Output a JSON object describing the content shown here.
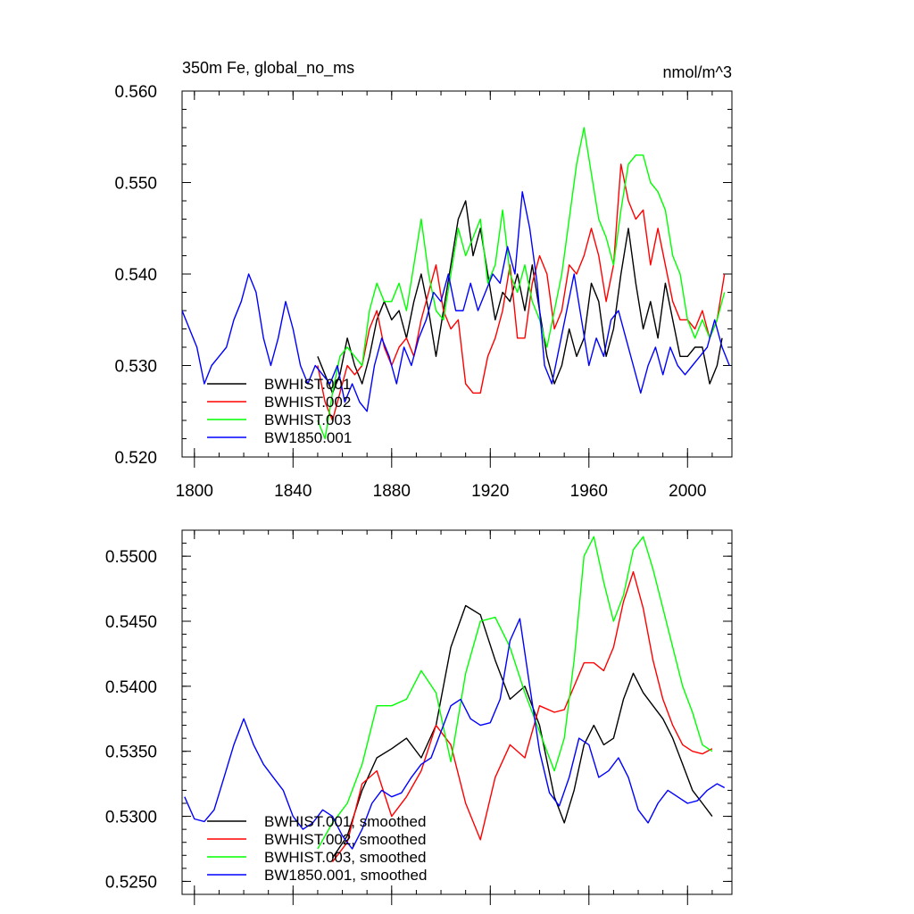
{
  "chart_data": [
    {
      "type": "line",
      "title": "350m Fe, global_no_ms",
      "units": "nmol/m^3",
      "xlabel": "",
      "ylabel": "",
      "xlim": [
        1795,
        2018
      ],
      "ylim": [
        0.52,
        0.56
      ],
      "x_ticks": [
        1800,
        1840,
        1880,
        1920,
        1960,
        2000
      ],
      "x_tick_labels": [
        "1800",
        "1840",
        "1880",
        "1920",
        "1960",
        "2000"
      ],
      "y_ticks": [
        0.52,
        0.53,
        0.54,
        0.55,
        0.56
      ],
      "y_tick_labels": [
        "0.520",
        "0.530",
        "0.540",
        "0.550",
        "0.560"
      ],
      "legend_position": "bottom-left",
      "grid": false,
      "series": [
        {
          "name": "BWHIST.001",
          "color": "#000000",
          "x": [
            1850,
            1853,
            1856,
            1859,
            1862,
            1865,
            1868,
            1871,
            1874,
            1877,
            1880,
            1883,
            1886,
            1889,
            1892,
            1895,
            1898,
            1901,
            1904,
            1907,
            1910,
            1913,
            1916,
            1919,
            1922,
            1925,
            1928,
            1931,
            1934,
            1937,
            1940,
            1943,
            1946,
            1949,
            1952,
            1955,
            1958,
            1961,
            1964,
            1967,
            1970,
            1973,
            1976,
            1979,
            1982,
            1985,
            1988,
            1991,
            1994,
            1997,
            2000,
            2003,
            2006,
            2009,
            2012,
            2014
          ],
          "values": [
            0.531,
            0.529,
            0.527,
            0.529,
            0.533,
            0.53,
            0.528,
            0.531,
            0.535,
            0.537,
            0.535,
            0.536,
            0.533,
            0.537,
            0.54,
            0.536,
            0.531,
            0.536,
            0.541,
            0.546,
            0.548,
            0.542,
            0.545,
            0.54,
            0.535,
            0.538,
            0.537,
            0.54,
            0.536,
            0.541,
            0.536,
            0.531,
            0.528,
            0.53,
            0.534,
            0.531,
            0.533,
            0.539,
            0.537,
            0.531,
            0.534,
            0.54,
            0.545,
            0.539,
            0.534,
            0.537,
            0.533,
            0.539,
            0.535,
            0.531,
            0.531,
            0.532,
            0.532,
            0.528,
            0.53,
            0.533
          ]
        },
        {
          "name": "BWHIST.002",
          "color": "#ff0000",
          "x": [
            1850,
            1853,
            1856,
            1859,
            1862,
            1865,
            1868,
            1871,
            1874,
            1877,
            1880,
            1883,
            1886,
            1889,
            1892,
            1895,
            1898,
            1901,
            1904,
            1907,
            1910,
            1913,
            1916,
            1919,
            1922,
            1925,
            1928,
            1931,
            1934,
            1937,
            1940,
            1943,
            1946,
            1949,
            1952,
            1955,
            1958,
            1961,
            1964,
            1967,
            1970,
            1973,
            1976,
            1979,
            1982,
            1985,
            1988,
            1991,
            1994,
            1997,
            2000,
            2003,
            2006,
            2009,
            2012,
            2015
          ],
          "values": [
            0.53,
            0.526,
            0.524,
            0.527,
            0.53,
            0.529,
            0.53,
            0.534,
            0.536,
            0.532,
            0.53,
            0.532,
            0.533,
            0.531,
            0.535,
            0.538,
            0.541,
            0.536,
            0.534,
            0.535,
            0.528,
            0.527,
            0.527,
            0.531,
            0.533,
            0.536,
            0.541,
            0.533,
            0.533,
            0.539,
            0.542,
            0.54,
            0.534,
            0.536,
            0.541,
            0.54,
            0.542,
            0.545,
            0.542,
            0.537,
            0.541,
            0.552,
            0.548,
            0.546,
            0.547,
            0.541,
            0.545,
            0.541,
            0.537,
            0.535,
            0.535,
            0.534,
            0.536,
            0.533,
            0.535,
            0.54
          ]
        },
        {
          "name": "BWHIST.003",
          "color": "#00ff00",
          "x": [
            1850,
            1853,
            1856,
            1859,
            1862,
            1865,
            1868,
            1871,
            1874,
            1877,
            1880,
            1883,
            1886,
            1889,
            1892,
            1895,
            1898,
            1901,
            1904,
            1907,
            1910,
            1913,
            1916,
            1919,
            1922,
            1925,
            1928,
            1931,
            1934,
            1937,
            1940,
            1943,
            1946,
            1949,
            1952,
            1955,
            1958,
            1961,
            1964,
            1967,
            1970,
            1973,
            1976,
            1979,
            1982,
            1985,
            1988,
            1991,
            1994,
            1997,
            2000,
            2003,
            2006,
            2009,
            2012,
            2015
          ],
          "values": [
            0.524,
            0.522,
            0.527,
            0.531,
            0.532,
            0.531,
            0.53,
            0.536,
            0.539,
            0.537,
            0.537,
            0.539,
            0.536,
            0.541,
            0.546,
            0.54,
            0.536,
            0.535,
            0.54,
            0.545,
            0.542,
            0.544,
            0.546,
            0.539,
            0.541,
            0.547,
            0.54,
            0.538,
            0.541,
            0.537,
            0.535,
            0.532,
            0.536,
            0.54,
            0.546,
            0.552,
            0.556,
            0.551,
            0.546,
            0.544,
            0.541,
            0.547,
            0.552,
            0.553,
            0.553,
            0.55,
            0.549,
            0.547,
            0.542,
            0.54,
            0.535,
            0.533,
            0.535,
            0.533,
            0.535,
            0.538
          ]
        },
        {
          "name": "BW1850.001",
          "color": "#0000ff",
          "x": [
            1795,
            1798,
            1801,
            1804,
            1807,
            1810,
            1813,
            1816,
            1819,
            1822,
            1825,
            1828,
            1831,
            1834,
            1837,
            1840,
            1843,
            1846,
            1849,
            1852,
            1855,
            1858,
            1861,
            1864,
            1867,
            1870,
            1873,
            1876,
            1879,
            1882,
            1885,
            1888,
            1891,
            1894,
            1897,
            1900,
            1903,
            1906,
            1909,
            1912,
            1915,
            1918,
            1921,
            1924,
            1927,
            1930,
            1933,
            1936,
            1939,
            1942,
            1945,
            1948,
            1951,
            1954,
            1957,
            1960,
            1963,
            1966,
            1969,
            1972,
            1975,
            1978,
            1981,
            1984,
            1987,
            1990,
            1993,
            1996,
            1999,
            2002,
            2005,
            2008,
            2011,
            2014,
            2017
          ],
          "values": [
            0.536,
            0.534,
            0.532,
            0.528,
            0.53,
            0.531,
            0.532,
            0.535,
            0.537,
            0.54,
            0.538,
            0.533,
            0.53,
            0.533,
            0.537,
            0.534,
            0.53,
            0.528,
            0.53,
            0.529,
            0.528,
            0.53,
            0.526,
            0.528,
            0.526,
            0.525,
            0.53,
            0.533,
            0.531,
            0.528,
            0.532,
            0.53,
            0.533,
            0.535,
            0.538,
            0.537,
            0.54,
            0.536,
            0.536,
            0.539,
            0.536,
            0.538,
            0.54,
            0.539,
            0.543,
            0.54,
            0.549,
            0.545,
            0.539,
            0.53,
            0.528,
            0.532,
            0.536,
            0.54,
            0.535,
            0.53,
            0.533,
            0.531,
            0.535,
            0.536,
            0.533,
            0.53,
            0.527,
            0.53,
            0.532,
            0.529,
            0.532,
            0.53,
            0.529,
            0.53,
            0.531,
            0.532,
            0.535,
            0.532,
            0.53
          ]
        }
      ]
    },
    {
      "type": "line",
      "title": "",
      "xlabel": "",
      "ylabel": "",
      "xlim": [
        1795,
        2018
      ],
      "ylim": [
        0.524,
        0.552
      ],
      "x_ticks": [
        1800,
        1840,
        1880,
        1920,
        1960,
        2000
      ],
      "x_tick_labels": [],
      "y_ticks": [
        0.525,
        0.53,
        0.535,
        0.54,
        0.545,
        0.55
      ],
      "y_tick_labels": [
        "0.5250",
        "0.5300",
        "0.5350",
        "0.5400",
        "0.5450",
        "0.5500"
      ],
      "legend_position": "bottom-left",
      "grid": false,
      "series": [
        {
          "name": "BWHIST.001, smoothed",
          "color": "#000000",
          "x": [
            1856,
            1862,
            1868,
            1874,
            1880,
            1886,
            1892,
            1898,
            1904,
            1910,
            1916,
            1922,
            1928,
            1934,
            1940,
            1946,
            1950,
            1954,
            1958,
            1962,
            1966,
            1970,
            1974,
            1978,
            1982,
            1986,
            1990,
            1994,
            1998,
            2002,
            2006,
            2010
          ],
          "values": [
            0.5268,
            0.5285,
            0.532,
            0.5345,
            0.5352,
            0.536,
            0.5345,
            0.537,
            0.543,
            0.5462,
            0.5455,
            0.542,
            0.539,
            0.54,
            0.537,
            0.5315,
            0.5295,
            0.532,
            0.5355,
            0.537,
            0.5355,
            0.536,
            0.539,
            0.541,
            0.5395,
            0.5385,
            0.5375,
            0.536,
            0.534,
            0.532,
            0.531,
            0.53
          ]
        },
        {
          "name": "BWHIST.002, smoothed",
          "color": "#ff0000",
          "x": [
            1856,
            1862,
            1868,
            1874,
            1880,
            1886,
            1892,
            1898,
            1904,
            1910,
            1916,
            1922,
            1928,
            1934,
            1940,
            1946,
            1950,
            1954,
            1958,
            1962,
            1966,
            1970,
            1974,
            1978,
            1982,
            1986,
            1990,
            1994,
            1998,
            2002,
            2006,
            2010
          ],
          "values": [
            0.5265,
            0.528,
            0.5325,
            0.5335,
            0.53,
            0.5315,
            0.5335,
            0.537,
            0.5355,
            0.531,
            0.5282,
            0.533,
            0.5355,
            0.5345,
            0.5385,
            0.538,
            0.5382,
            0.54,
            0.5418,
            0.5418,
            0.5412,
            0.543,
            0.5465,
            0.5488,
            0.546,
            0.542,
            0.539,
            0.537,
            0.5355,
            0.535,
            0.5348,
            0.5352
          ]
        },
        {
          "name": "BWHIST.003, smoothed",
          "color": "#00ff00",
          "x": [
            1850,
            1856,
            1862,
            1868,
            1874,
            1880,
            1886,
            1892,
            1898,
            1904,
            1910,
            1916,
            1922,
            1928,
            1934,
            1940,
            1946,
            1950,
            1954,
            1958,
            1962,
            1966,
            1970,
            1974,
            1978,
            1982,
            1986,
            1990,
            1994,
            1998,
            2002,
            2006,
            2010
          ],
          "values": [
            0.5275,
            0.5295,
            0.531,
            0.534,
            0.5385,
            0.5385,
            0.539,
            0.5412,
            0.5395,
            0.5342,
            0.541,
            0.545,
            0.5453,
            0.543,
            0.5395,
            0.5365,
            0.5335,
            0.536,
            0.542,
            0.55,
            0.5515,
            0.548,
            0.545,
            0.547,
            0.5505,
            0.5515,
            0.549,
            0.546,
            0.543,
            0.54,
            0.538,
            0.5355,
            0.535
          ]
        },
        {
          "name": "BW1850.001, smoothed",
          "color": "#0000ff",
          "x": [
            1796,
            1800,
            1804,
            1808,
            1812,
            1816,
            1820,
            1824,
            1828,
            1832,
            1836,
            1840,
            1844,
            1848,
            1852,
            1856,
            1860,
            1864,
            1868,
            1872,
            1876,
            1880,
            1884,
            1888,
            1892,
            1896,
            1900,
            1904,
            1908,
            1912,
            1916,
            1920,
            1924,
            1928,
            1932,
            1936,
            1940,
            1944,
            1948,
            1952,
            1956,
            1960,
            1964,
            1968,
            1972,
            1976,
            1980,
            1984,
            1988,
            1992,
            1996,
            2000,
            2004,
            2008,
            2012,
            2015
          ],
          "values": [
            0.5315,
            0.5298,
            0.5296,
            0.5305,
            0.533,
            0.5355,
            0.5375,
            0.5355,
            0.534,
            0.533,
            0.532,
            0.53,
            0.529,
            0.5295,
            0.5305,
            0.53,
            0.5285,
            0.5275,
            0.529,
            0.531,
            0.532,
            0.5315,
            0.5318,
            0.533,
            0.534,
            0.5345,
            0.5365,
            0.5385,
            0.539,
            0.5375,
            0.537,
            0.5372,
            0.539,
            0.5435,
            0.5452,
            0.54,
            0.535,
            0.5318,
            0.5308,
            0.533,
            0.536,
            0.5355,
            0.533,
            0.5335,
            0.5345,
            0.533,
            0.5305,
            0.5295,
            0.531,
            0.532,
            0.5315,
            0.531,
            0.5312,
            0.532,
            0.5325,
            0.5322
          ]
        }
      ]
    }
  ]
}
